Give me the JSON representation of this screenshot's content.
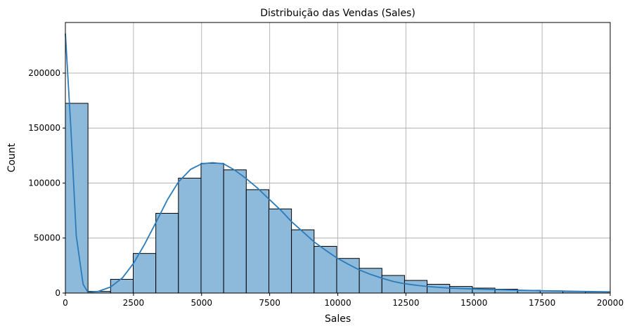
{
  "chart_data": {
    "type": "bar",
    "title": "Distribuição das Vendas (Sales)",
    "xlabel": "Sales",
    "ylabel": "Count",
    "xlim": [
      0,
      20000
    ],
    "ylim": [
      0,
      246000
    ],
    "grid": true,
    "x_ticks": [
      0,
      2500,
      5000,
      7500,
      10000,
      12500,
      15000,
      17500,
      20000
    ],
    "y_ticks": [
      0,
      50000,
      100000,
      150000,
      200000
    ],
    "bar_color": "#8dbadb",
    "line_color": "#2b7bba",
    "bin_width": 830,
    "bins": [
      {
        "x0": 0,
        "count": 172500
      },
      {
        "x0": 830,
        "count": 1500
      },
      {
        "x0": 1660,
        "count": 12500
      },
      {
        "x0": 2490,
        "count": 36000
      },
      {
        "x0": 3320,
        "count": 72500
      },
      {
        "x0": 4150,
        "count": 104500
      },
      {
        "x0": 4980,
        "count": 118000
      },
      {
        "x0": 5810,
        "count": 112000
      },
      {
        "x0": 6640,
        "count": 94000
      },
      {
        "x0": 7470,
        "count": 76500
      },
      {
        "x0": 8300,
        "count": 57500
      },
      {
        "x0": 9130,
        "count": 42500
      },
      {
        "x0": 9960,
        "count": 31500
      },
      {
        "x0": 10790,
        "count": 22500
      },
      {
        "x0": 11620,
        "count": 16000
      },
      {
        "x0": 12450,
        "count": 11500
      },
      {
        "x0": 13280,
        "count": 8000
      },
      {
        "x0": 14110,
        "count": 6000
      },
      {
        "x0": 14940,
        "count": 4500
      },
      {
        "x0": 15770,
        "count": 3500
      },
      {
        "x0": 16600,
        "count": 2500
      },
      {
        "x0": 17430,
        "count": 2000
      },
      {
        "x0": 18260,
        "count": 1500
      },
      {
        "x0": 19090,
        "count": 1200
      }
    ],
    "kde": [
      [
        0,
        236000
      ],
      [
        200,
        150000
      ],
      [
        400,
        52000
      ],
      [
        650,
        8000
      ],
      [
        830,
        500
      ],
      [
        1200,
        1500
      ],
      [
        1660,
        5500
      ],
      [
        2100,
        14000
      ],
      [
        2500,
        27000
      ],
      [
        2900,
        44000
      ],
      [
        3320,
        64000
      ],
      [
        3750,
        85000
      ],
      [
        4150,
        101000
      ],
      [
        4600,
        112500
      ],
      [
        5000,
        117500
      ],
      [
        5400,
        118500
      ],
      [
        5810,
        117500
      ],
      [
        6200,
        112000
      ],
      [
        6640,
        104000
      ],
      [
        7050,
        95500
      ],
      [
        7470,
        85500
      ],
      [
        7900,
        75500
      ],
      [
        8300,
        65000
      ],
      [
        8750,
        55000
      ],
      [
        9130,
        46500
      ],
      [
        9550,
        39000
      ],
      [
        9960,
        32000
      ],
      [
        10400,
        26000
      ],
      [
        10790,
        21000
      ],
      [
        11200,
        17000
      ],
      [
        11620,
        13500
      ],
      [
        12050,
        10500
      ],
      [
        12450,
        8500
      ],
      [
        12900,
        7000
      ],
      [
        13280,
        6000
      ],
      [
        13700,
        5200
      ],
      [
        14110,
        4500
      ],
      [
        15000,
        3700
      ],
      [
        15800,
        3100
      ],
      [
        16600,
        2600
      ],
      [
        17400,
        2200
      ],
      [
        18200,
        1800
      ],
      [
        19100,
        1400
      ],
      [
        20000,
        1100
      ]
    ]
  }
}
